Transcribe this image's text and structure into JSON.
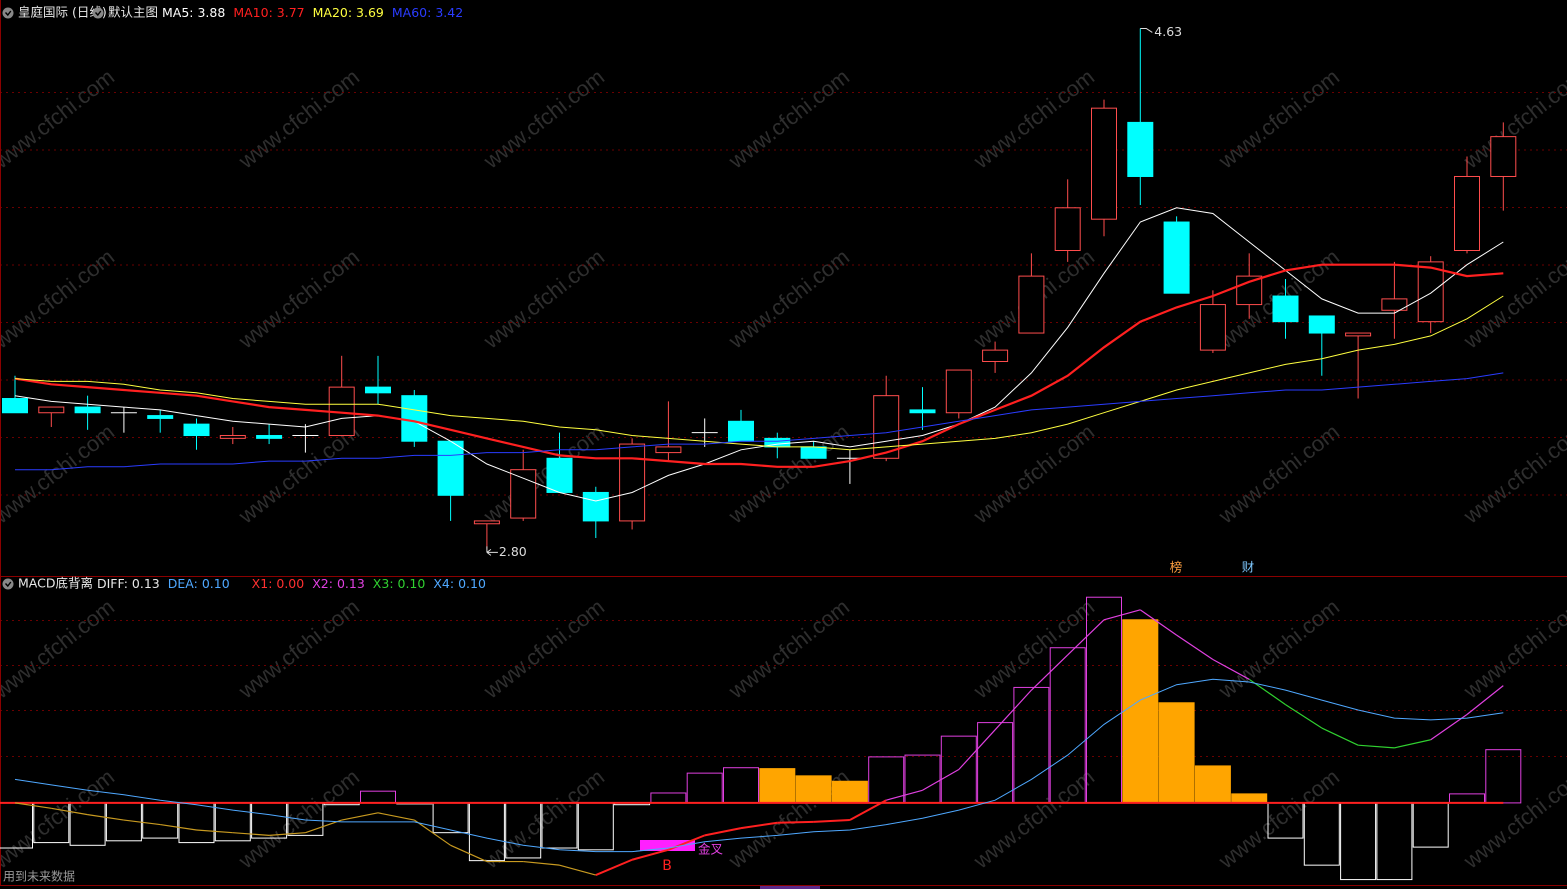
{
  "chart_data": [
    {
      "type": "candlestick",
      "title": "皇庭国际 (日线)",
      "subtitle": "默认主图",
      "ylim": [
        2.71,
        4.73
      ],
      "grid": true,
      "up_color": "#ff4d4d",
      "down_color": "#00ffff",
      "flat_color": "#ffffff",
      "open": [
        3.33,
        3.28,
        3.3,
        3.28,
        3.27,
        3.24,
        3.19,
        3.2,
        3.2,
        3.2,
        3.37,
        3.34,
        3.18,
        2.89,
        2.91,
        3.12,
        3.0,
        2.9,
        3.14,
        3.21,
        3.25,
        3.19,
        3.16,
        3.12,
        3.12,
        3.29,
        3.28,
        3.46,
        3.56,
        3.85,
        3.96,
        4.3,
        3.95,
        3.5,
        3.66,
        3.69,
        3.62,
        3.55,
        3.64,
        3.6,
        3.85,
        4.11
      ],
      "high": [
        3.41,
        3.3,
        3.34,
        3.3,
        3.29,
        3.26,
        3.23,
        3.24,
        3.24,
        3.48,
        3.48,
        3.36,
        3.18,
        2.9,
        3.15,
        3.21,
        3.02,
        3.19,
        3.32,
        3.26,
        3.29,
        3.21,
        3.18,
        3.15,
        3.41,
        3.37,
        3.43,
        3.53,
        3.84,
        4.1,
        4.38,
        4.63,
        3.97,
        3.71,
        3.84,
        3.75,
        3.62,
        3.56,
        3.81,
        3.83,
        4.18,
        4.3
      ],
      "low": [
        3.28,
        3.23,
        3.22,
        3.21,
        3.21,
        3.15,
        3.17,
        3.17,
        3.14,
        3.2,
        3.31,
        3.16,
        2.9,
        2.8,
        2.9,
        3.0,
        2.84,
        2.87,
        3.11,
        3.16,
        3.18,
        3.12,
        3.12,
        3.03,
        3.11,
        3.22,
        3.26,
        3.42,
        3.56,
        3.81,
        3.9,
        4.01,
        3.7,
        3.49,
        3.61,
        3.54,
        3.41,
        3.33,
        3.54,
        3.56,
        3.84,
        3.99
      ],
      "close": [
        3.28,
        3.3,
        3.28,
        3.28,
        3.26,
        3.2,
        3.2,
        3.19,
        3.2,
        3.37,
        3.35,
        3.18,
        2.99,
        2.9,
        3.08,
        3.0,
        2.9,
        3.17,
        3.16,
        3.21,
        3.18,
        3.16,
        3.12,
        3.12,
        3.34,
        3.28,
        3.43,
        3.5,
        3.76,
        4.0,
        4.35,
        4.11,
        3.7,
        3.66,
        3.76,
        3.6,
        3.56,
        3.56,
        3.68,
        3.81,
        4.11,
        4.25
      ],
      "series": [
        {
          "name": "MA5",
          "color": "#ffffff",
          "width": 1,
          "legend_value": 3.88,
          "values": [
            3.34,
            3.32,
            3.31,
            3.3,
            3.29,
            3.27,
            3.25,
            3.24,
            3.23,
            3.26,
            3.27,
            3.25,
            3.18,
            3.1,
            3.05,
            3.0,
            2.97,
            3.0,
            3.06,
            3.1,
            3.15,
            3.17,
            3.18,
            3.16,
            3.18,
            3.2,
            3.24,
            3.3,
            3.42,
            3.58,
            3.77,
            3.95,
            4.0,
            3.98,
            3.88,
            3.78,
            3.68,
            3.63,
            3.63,
            3.7,
            3.8,
            3.88
          ]
        },
        {
          "name": "MA10",
          "color": "#ff2020",
          "width": 2.2,
          "legend_value": 3.77,
          "values": [
            3.4,
            3.38,
            3.37,
            3.36,
            3.35,
            3.34,
            3.32,
            3.3,
            3.29,
            3.28,
            3.27,
            3.25,
            3.22,
            3.19,
            3.16,
            3.13,
            3.12,
            3.12,
            3.11,
            3.1,
            3.1,
            3.09,
            3.09,
            3.11,
            3.14,
            3.18,
            3.24,
            3.29,
            3.34,
            3.41,
            3.51,
            3.6,
            3.65,
            3.69,
            3.74,
            3.78,
            3.8,
            3.8,
            3.8,
            3.79,
            3.76,
            3.77
          ]
        },
        {
          "name": "MA20",
          "color": "#ffff40",
          "width": 1,
          "legend_value": 3.69,
          "values": [
            3.4,
            3.39,
            3.39,
            3.38,
            3.36,
            3.35,
            3.33,
            3.32,
            3.31,
            3.31,
            3.31,
            3.29,
            3.27,
            3.26,
            3.25,
            3.23,
            3.22,
            3.2,
            3.19,
            3.18,
            3.17,
            3.16,
            3.16,
            3.15,
            3.16,
            3.17,
            3.18,
            3.19,
            3.21,
            3.24,
            3.28,
            3.32,
            3.36,
            3.39,
            3.42,
            3.45,
            3.47,
            3.5,
            3.52,
            3.55,
            3.61,
            3.69
          ]
        },
        {
          "name": "MA60",
          "color": "#2a3cff",
          "width": 1,
          "legend_value": 3.42,
          "values": [
            3.08,
            3.08,
            3.09,
            3.09,
            3.1,
            3.1,
            3.1,
            3.11,
            3.11,
            3.12,
            3.12,
            3.13,
            3.13,
            3.14,
            3.14,
            3.15,
            3.15,
            3.16,
            3.17,
            3.17,
            3.18,
            3.18,
            3.19,
            3.2,
            3.21,
            3.23,
            3.25,
            3.27,
            3.29,
            3.3,
            3.31,
            3.32,
            3.33,
            3.34,
            3.35,
            3.36,
            3.36,
            3.37,
            3.38,
            3.39,
            3.4,
            3.42
          ]
        }
      ],
      "annotations": [
        {
          "value": 4.63,
          "label": "4.63"
        },
        {
          "value": 2.8,
          "label": "2.80"
        }
      ],
      "markers": [
        {
          "label": "榜",
          "color": "#ffa040"
        },
        {
          "label": "财",
          "color": "#7ec8ff"
        }
      ],
      "watermark": "www.cfchi.com"
    },
    {
      "type": "macd",
      "title": "MACD底背离",
      "ylim": [
        -0.091,
        0.236
      ],
      "histogram": [
        -0.05,
        -0.044,
        -0.047,
        -0.042,
        -0.039,
        -0.044,
        -0.042,
        -0.039,
        -0.036,
        -0.002,
        0.013,
        -0.001,
        -0.033,
        -0.064,
        -0.061,
        -0.05,
        -0.052,
        -0.002,
        0.011,
        0.033,
        0.039,
        0.038,
        0.03,
        0.024,
        0.051,
        0.053,
        0.074,
        0.089,
        0.128,
        0.172,
        0.228,
        0.203,
        0.111,
        0.041,
        0.01,
        -0.039,
        -0.069,
        -0.085,
        -0.085,
        -0.049,
        0.01,
        0.059
      ],
      "histogram_colors": {
        "rising": "#e040e0",
        "falling": "#ffa500",
        "negative": "#ffffff"
      },
      "series": [
        {
          "name": "DIFF",
          "color": "#ffffff",
          "legend_value": 0.13,
          "values": [
            0,
            -0.006,
            -0.013,
            -0.019,
            -0.024,
            -0.03,
            -0.033,
            -0.036,
            -0.033,
            -0.019,
            -0.011,
            -0.019,
            -0.047,
            -0.065,
            -0.065,
            -0.069,
            -0.08,
            -0.063,
            -0.052,
            -0.036,
            -0.028,
            -0.022,
            -0.021,
            -0.019,
            0.003,
            0.014,
            0.037,
            0.081,
            0.125,
            0.164,
            0.203,
            0.214,
            0.186,
            0.159,
            0.137,
            0.109,
            0.083,
            0.064,
            0.061,
            0.07,
            0.098,
            0.13
          ],
          "colors": [
            "#c89a20",
            "#c89a20",
            "#c89a20",
            "#c89a20",
            "#c89a20",
            "#c89a20",
            "#c89a20",
            "#c89a20",
            "#c89a20",
            "#c89a20",
            "#c89a20",
            "#c89a20",
            "#c89a20",
            "#c89a20",
            "#c89a20",
            "#c89a20",
            "#c89a20",
            "#ff2020",
            "#ff2020",
            "#ff2020",
            "#ff2020",
            "#ff2020",
            "#ff2020",
            "#ff2020",
            "#ff2020",
            "#e040e0",
            "#e040e0",
            "#e040e0",
            "#e040e0",
            "#e040e0",
            "#e040e0",
            "#e040e0",
            "#e040e0",
            "#e040e0",
            "#e040e0",
            "#30d030",
            "#30d030",
            "#30d030",
            "#30d030",
            "#30d030",
            "#e040e0",
            "#e040e0"
          ]
        },
        {
          "name": "DEA",
          "color": "#4fa8ff",
          "legend_value": {
            "value": 0.1,
            "label": "0.10"
          },
          "values": [
            0.026,
            0.02,
            0.014,
            0.009,
            0.003,
            -0.002,
            -0.008,
            -0.013,
            -0.019,
            -0.021,
            -0.021,
            -0.021,
            -0.03,
            -0.039,
            -0.047,
            -0.052,
            -0.054,
            -0.054,
            -0.05,
            -0.043,
            -0.039,
            -0.036,
            -0.032,
            -0.03,
            -0.024,
            -0.017,
            -0.008,
            0.003,
            0.026,
            0.053,
            0.087,
            0.114,
            0.131,
            0.137,
            0.134,
            0.125,
            0.114,
            0.103,
            0.094,
            0.092,
            0.094,
            0.1
          ]
        }
      ],
      "indicators": [
        {
          "name": "X1",
          "color": "#ff3030",
          "legend_value": {
            "value": 0,
            "label": "0.00"
          }
        },
        {
          "name": "X2",
          "color": "#e040e0",
          "legend_value": 0.13
        },
        {
          "name": "X3",
          "color": "#30d030",
          "legend_value": {
            "value": 0.1,
            "label": "0.10"
          }
        },
        {
          "name": "X4",
          "color": "#4fa8ff",
          "legend_value": {
            "value": 0.1,
            "label": "0.10"
          }
        }
      ],
      "signal": {
        "label": "B",
        "text": "金叉"
      },
      "footer": "用到未来数据"
    }
  ]
}
